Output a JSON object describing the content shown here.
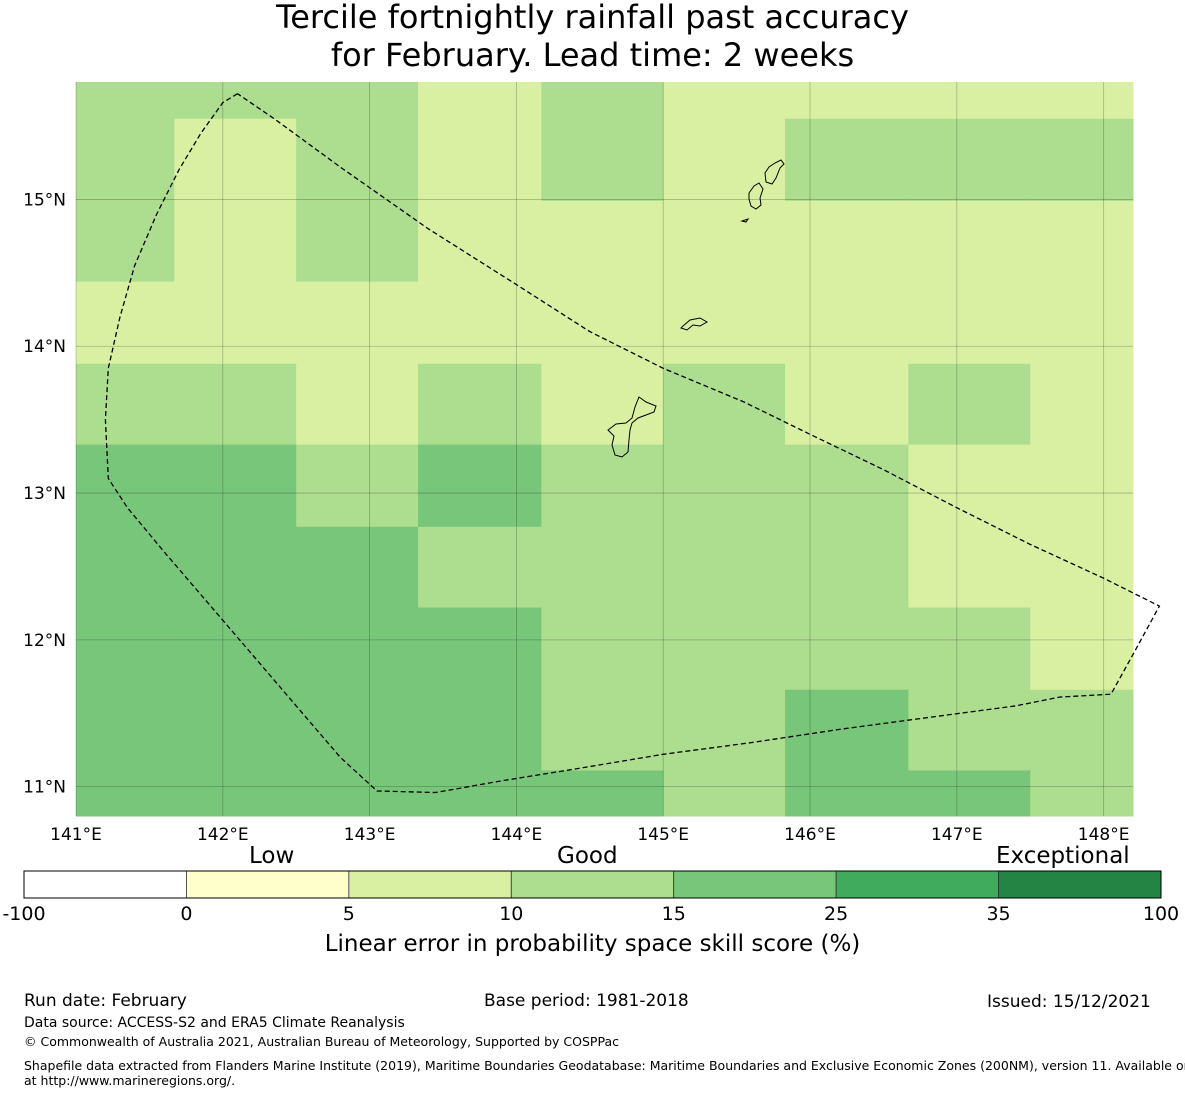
{
  "title": {
    "line1": "Tercile fortnightly rainfall past accuracy",
    "line2": "for February. Lead time: 2 weeks"
  },
  "map": {
    "lon_labels": [
      "141°E",
      "142°E",
      "143°E",
      "144°E",
      "145°E",
      "146°E",
      "147°E",
      "148°E"
    ],
    "lat_labels": [
      "15°N",
      "14°N",
      "13°N",
      "12°N",
      "11°N"
    ],
    "lon_values": [
      141,
      142,
      143,
      144,
      145,
      146,
      147,
      148
    ],
    "lat_values": [
      15,
      14,
      13,
      12,
      11
    ],
    "extent": {
      "lon": [
        141.0,
        148.2
      ],
      "lat": [
        10.8,
        15.8
      ]
    },
    "grid_lon_edges": [
      141.0,
      141.67,
      142.5,
      143.33,
      144.17,
      145.0,
      145.83,
      146.67,
      147.5,
      148.2
    ],
    "grid_lat_edges": [
      15.8,
      15.55,
      14.99,
      14.44,
      13.88,
      13.33,
      12.77,
      12.22,
      11.66,
      11.11,
      10.8
    ],
    "cell_class": [
      [
        2,
        2,
        2,
        1,
        2,
        1,
        1,
        1,
        1
      ],
      [
        2,
        1,
        2,
        1,
        2,
        1,
        2,
        2,
        2
      ],
      [
        2,
        1,
        2,
        1,
        1,
        1,
        1,
        1,
        1
      ],
      [
        1,
        1,
        1,
        1,
        1,
        1,
        1,
        1,
        1
      ],
      [
        2,
        2,
        1,
        2,
        1,
        2,
        1,
        2,
        1
      ],
      [
        3,
        3,
        2,
        3,
        2,
        2,
        2,
        1,
        1
      ],
      [
        3,
        3,
        3,
        2,
        2,
        2,
        2,
        1,
        1
      ],
      [
        3,
        3,
        3,
        3,
        2,
        2,
        2,
        2,
        1
      ],
      [
        3,
        3,
        3,
        3,
        2,
        2,
        3,
        2,
        2
      ],
      [
        3,
        3,
        3,
        3,
        3,
        2,
        3,
        3,
        2
      ]
    ],
    "class_colors": [
      "#ffffcc",
      "#d9f0a3",
      "#addd8e",
      "#78c679"
    ],
    "eez_boundary": [
      [
        142.1,
        15.72
      ],
      [
        142.0,
        15.66
      ],
      [
        141.85,
        15.45
      ],
      [
        141.7,
        15.2
      ],
      [
        141.55,
        14.9
      ],
      [
        141.4,
        14.55
      ],
      [
        141.3,
        14.2
      ],
      [
        141.22,
        13.85
      ],
      [
        141.2,
        13.5
      ],
      [
        141.22,
        13.1
      ],
      [
        141.35,
        12.9
      ],
      [
        141.6,
        12.6
      ],
      [
        141.9,
        12.25
      ],
      [
        142.2,
        11.9
      ],
      [
        142.5,
        11.55
      ],
      [
        142.8,
        11.2
      ],
      [
        143.05,
        10.97
      ],
      [
        143.45,
        10.96
      ],
      [
        143.9,
        11.04
      ],
      [
        144.4,
        11.12
      ],
      [
        145.0,
        11.22
      ],
      [
        145.6,
        11.3
      ],
      [
        146.2,
        11.39
      ],
      [
        146.8,
        11.47
      ],
      [
        147.4,
        11.55
      ],
      [
        147.7,
        11.61
      ],
      [
        148.05,
        11.63
      ],
      [
        148.2,
        11.9
      ],
      [
        148.38,
        12.23
      ],
      [
        148.0,
        12.42
      ],
      [
        147.5,
        12.65
      ],
      [
        147.0,
        12.9
      ],
      [
        146.5,
        13.16
      ],
      [
        146.0,
        13.4
      ],
      [
        145.55,
        13.62
      ],
      [
        145.0,
        13.85
      ],
      [
        144.5,
        14.1
      ],
      [
        144.0,
        14.42
      ],
      [
        143.4,
        14.8
      ],
      [
        142.8,
        15.22
      ],
      [
        142.35,
        15.55
      ],
      [
        142.1,
        15.72
      ]
    ]
  },
  "legend": {
    "category_labels": [
      "Low",
      "Good",
      "Exceptional"
    ],
    "bins": [
      {
        "from": -100,
        "to": 0,
        "color": "#ffffff"
      },
      {
        "from": 0,
        "to": 5,
        "color": "#ffffcc"
      },
      {
        "from": 5,
        "to": 10,
        "color": "#d9f0a3"
      },
      {
        "from": 10,
        "to": 15,
        "color": "#addd8e"
      },
      {
        "from": 15,
        "to": 25,
        "color": "#78c679"
      },
      {
        "from": 25,
        "to": 35,
        "color": "#41ab5d"
      },
      {
        "from": 35,
        "to": 100,
        "color": "#238443"
      }
    ],
    "tick_labels": [
      "-100",
      "0",
      "5",
      "10",
      "15",
      "25",
      "35",
      "100"
    ],
    "axis_label": "Linear error in probability space skill score (%)"
  },
  "footer": {
    "run_date": "Run date: February",
    "base_period": "Base period: 1981-2018",
    "issued": "Issued: 15/12/2021",
    "data_source": "Data source: ACCESS-S2 and ERA5 Climate Reanalysis",
    "copyright": "© Commonwealth of Australia 2021, Australian Bureau of Meteorology, Supported by COSPPac",
    "shapefile_line1": "Shapefile data extracted from Flanders Marine Institute (2019), Maritime Boundaries Geodatabase: Maritime Boundaries and Exclusive Economic Zones (200NM), version 11. Available online",
    "shapefile_line2": "at http://www.marineregions.org/."
  }
}
